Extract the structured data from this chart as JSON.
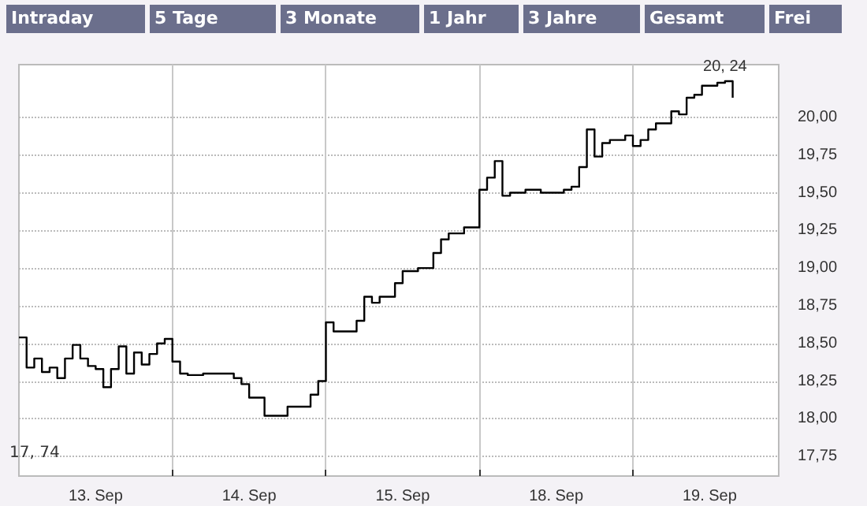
{
  "chart_data": {
    "type": "step",
    "color": "#000000",
    "categories": [
      null,
      null,
      null,
      null,
      null,
      null,
      null,
      null,
      null,
      null,
      "13. Sep",
      null,
      null,
      null,
      null,
      null,
      null,
      null,
      null,
      null,
      null,
      null,
      null,
      null,
      null,
      null,
      null,
      null,
      null,
      null,
      "14. Sep",
      null,
      null,
      null,
      null,
      null,
      null,
      null,
      null,
      null,
      null,
      null,
      null,
      null,
      null,
      null,
      null,
      null,
      null,
      null,
      "15. Sep",
      null,
      null,
      null,
      null,
      null,
      null,
      null,
      null,
      null,
      null,
      null,
      null,
      null,
      null,
      null,
      null,
      null,
      null,
      null,
      "18. Sep",
      null,
      null,
      null,
      null,
      null,
      null,
      null,
      null,
      null,
      null,
      null,
      null,
      null,
      null,
      null,
      null,
      null,
      null,
      null,
      "19. Sep",
      null,
      null,
      null,
      null,
      null,
      null,
      null,
      null,
      null
    ],
    "values": [
      18.54,
      18.34,
      18.4,
      18.31,
      18.34,
      18.27,
      18.4,
      18.49,
      18.4,
      18.35,
      18.33,
      18.21,
      18.33,
      18.48,
      18.3,
      18.44,
      18.36,
      18.43,
      18.5,
      18.53,
      18.38,
      18.3,
      18.29,
      18.29,
      18.3,
      18.3,
      18.3,
      18.3,
      18.27,
      18.23,
      18.14,
      18.14,
      18.02,
      18.02,
      18.02,
      18.08,
      18.08,
      18.08,
      18.16,
      18.25,
      18.64,
      18.58,
      18.58,
      18.58,
      18.65,
      18.81,
      18.77,
      18.81,
      18.81,
      18.9,
      18.98,
      18.98,
      19.0,
      19.0,
      19.1,
      19.19,
      19.23,
      19.23,
      19.27,
      19.27,
      19.52,
      19.6,
      19.71,
      19.48,
      19.5,
      19.5,
      19.52,
      19.52,
      19.5,
      19.5,
      19.5,
      19.52,
      19.54,
      19.67,
      19.92,
      19.74,
      19.83,
      19.85,
      19.85,
      19.88,
      19.81,
      19.85,
      19.92,
      19.96,
      19.96,
      20.04,
      20.02,
      20.13,
      20.15,
      20.21,
      20.21,
      20.23,
      20.24,
      20.13,
      null,
      null,
      null,
      null,
      null,
      null
    ],
    "ylim": [
      17.62,
      20.35
    ],
    "yticks": [
      {
        "value": 17.75,
        "label": "17,75"
      },
      {
        "value": 18,
        "label": "18,00"
      },
      {
        "value": 18.25,
        "label": "18,25"
      },
      {
        "value": 18.5,
        "label": "18,50"
      },
      {
        "value": 18.75,
        "label": "18,75"
      },
      {
        "value": 19,
        "label": "19,00"
      },
      {
        "value": 19.25,
        "label": "19,25"
      },
      {
        "value": 19.5,
        "label": "19,50"
      },
      {
        "value": 19.75,
        "label": "19,75"
      },
      {
        "value": 20,
        "label": "20,00"
      }
    ],
    "grid": true,
    "annotations": [
      "Intraday",
      "5 Tage",
      "3 Monate",
      "1 Jahr",
      "3 Jahre",
      "Gesamt",
      "Frei",
      {
        "text": "20, 24",
        "y": 20.24
      },
      "17, 74"
    ]
  }
}
